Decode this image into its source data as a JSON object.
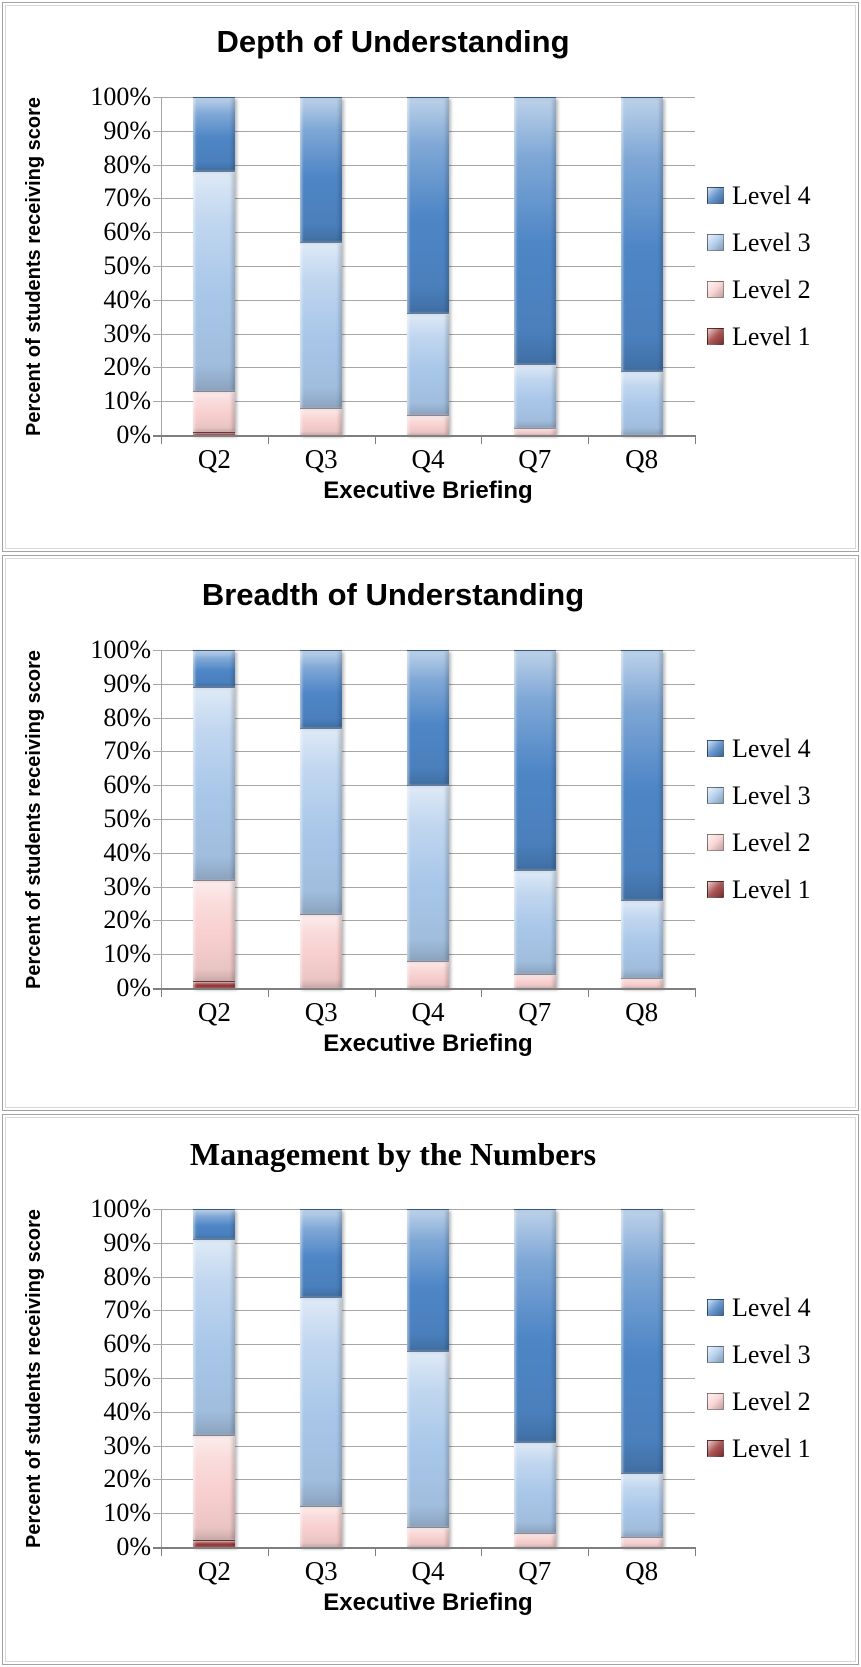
{
  "page": {
    "background": "#ffffff"
  },
  "colors": {
    "level4": "#4e86c6",
    "level3": "#a9c7e9",
    "level2": "#f7cfce",
    "level1": "#9c3a38",
    "gridline": "#a6a6a6",
    "axis": "#7f7f7f",
    "panel_border": "#a2a2a2"
  },
  "chart_data": [
    {
      "type": "bar",
      "stacked": true,
      "units": "percent",
      "title": "Depth of Understanding",
      "title_style": "sans",
      "xlabel": "Executive Briefing",
      "ylabel": "Percent of students receiving score",
      "categories": [
        "Q2",
        "Q3",
        "Q4",
        "Q7",
        "Q8"
      ],
      "yticks": [
        "100%",
        "90%",
        "80%",
        "70%",
        "60%",
        "50%",
        "40%",
        "30%",
        "20%",
        "10%",
        "0%"
      ],
      "ylim": [
        0,
        100
      ],
      "grid": true,
      "legend_position": "right",
      "legend": [
        "Level 4",
        "Level 3",
        "Level 2",
        "Level 1"
      ],
      "series": [
        {
          "name": "Level 1",
          "color": "#9c3a38",
          "values": [
            1,
            0,
            0,
            0,
            0
          ]
        },
        {
          "name": "Level 2",
          "color": "#f7cfce",
          "values": [
            12,
            8,
            6,
            2,
            0
          ]
        },
        {
          "name": "Level 3",
          "color": "#a9c7e9",
          "values": [
            65,
            49,
            30,
            19,
            19
          ]
        },
        {
          "name": "Level 4",
          "color": "#4e86c6",
          "values": [
            22,
            43,
            64,
            79,
            81
          ]
        }
      ]
    },
    {
      "type": "bar",
      "stacked": true,
      "units": "percent",
      "title": "Breadth of Understanding",
      "title_style": "sans",
      "xlabel": "Executive Briefing",
      "ylabel": "Percent of students receiving score",
      "categories": [
        "Q2",
        "Q3",
        "Q4",
        "Q7",
        "Q8"
      ],
      "yticks": [
        "100%",
        "90%",
        "80%",
        "70%",
        "60%",
        "50%",
        "40%",
        "30%",
        "20%",
        "10%",
        "0%"
      ],
      "ylim": [
        0,
        100
      ],
      "grid": true,
      "legend_position": "right",
      "legend": [
        "Level 4",
        "Level 3",
        "Level 2",
        "Level 1"
      ],
      "series": [
        {
          "name": "Level 1",
          "color": "#9c3a38",
          "values": [
            2,
            0,
            0,
            0,
            0
          ]
        },
        {
          "name": "Level 2",
          "color": "#f7cfce",
          "values": [
            30,
            22,
            8,
            4,
            3
          ]
        },
        {
          "name": "Level 3",
          "color": "#a9c7e9",
          "values": [
            57,
            55,
            52,
            31,
            23
          ]
        },
        {
          "name": "Level 4",
          "color": "#4e86c6",
          "values": [
            11,
            23,
            40,
            65,
            74
          ]
        }
      ]
    },
    {
      "type": "bar",
      "stacked": true,
      "units": "percent",
      "title": "Management by the Numbers",
      "title_style": "serif",
      "xlabel": "Executive Briefing",
      "ylabel": "Percent of students receiving score",
      "categories": [
        "Q2",
        "Q3",
        "Q4",
        "Q7",
        "Q8"
      ],
      "yticks": [
        "100%",
        "90%",
        "80%",
        "70%",
        "60%",
        "50%",
        "40%",
        "30%",
        "20%",
        "10%",
        "0%"
      ],
      "ylim": [
        0,
        100
      ],
      "grid": true,
      "legend_position": "right",
      "legend": [
        "Level 4",
        "Level 3",
        "Level 2",
        "Level 1"
      ],
      "series": [
        {
          "name": "Level 1",
          "color": "#9c3a38",
          "values": [
            2,
            0,
            0,
            0,
            0
          ]
        },
        {
          "name": "Level 2",
          "color": "#f7cfce",
          "values": [
            31,
            12,
            6,
            4,
            3
          ]
        },
        {
          "name": "Level 3",
          "color": "#a9c7e9",
          "values": [
            58,
            62,
            52,
            27,
            19
          ]
        },
        {
          "name": "Level 4",
          "color": "#4e86c6",
          "values": [
            9,
            26,
            42,
            69,
            78
          ]
        }
      ]
    }
  ]
}
